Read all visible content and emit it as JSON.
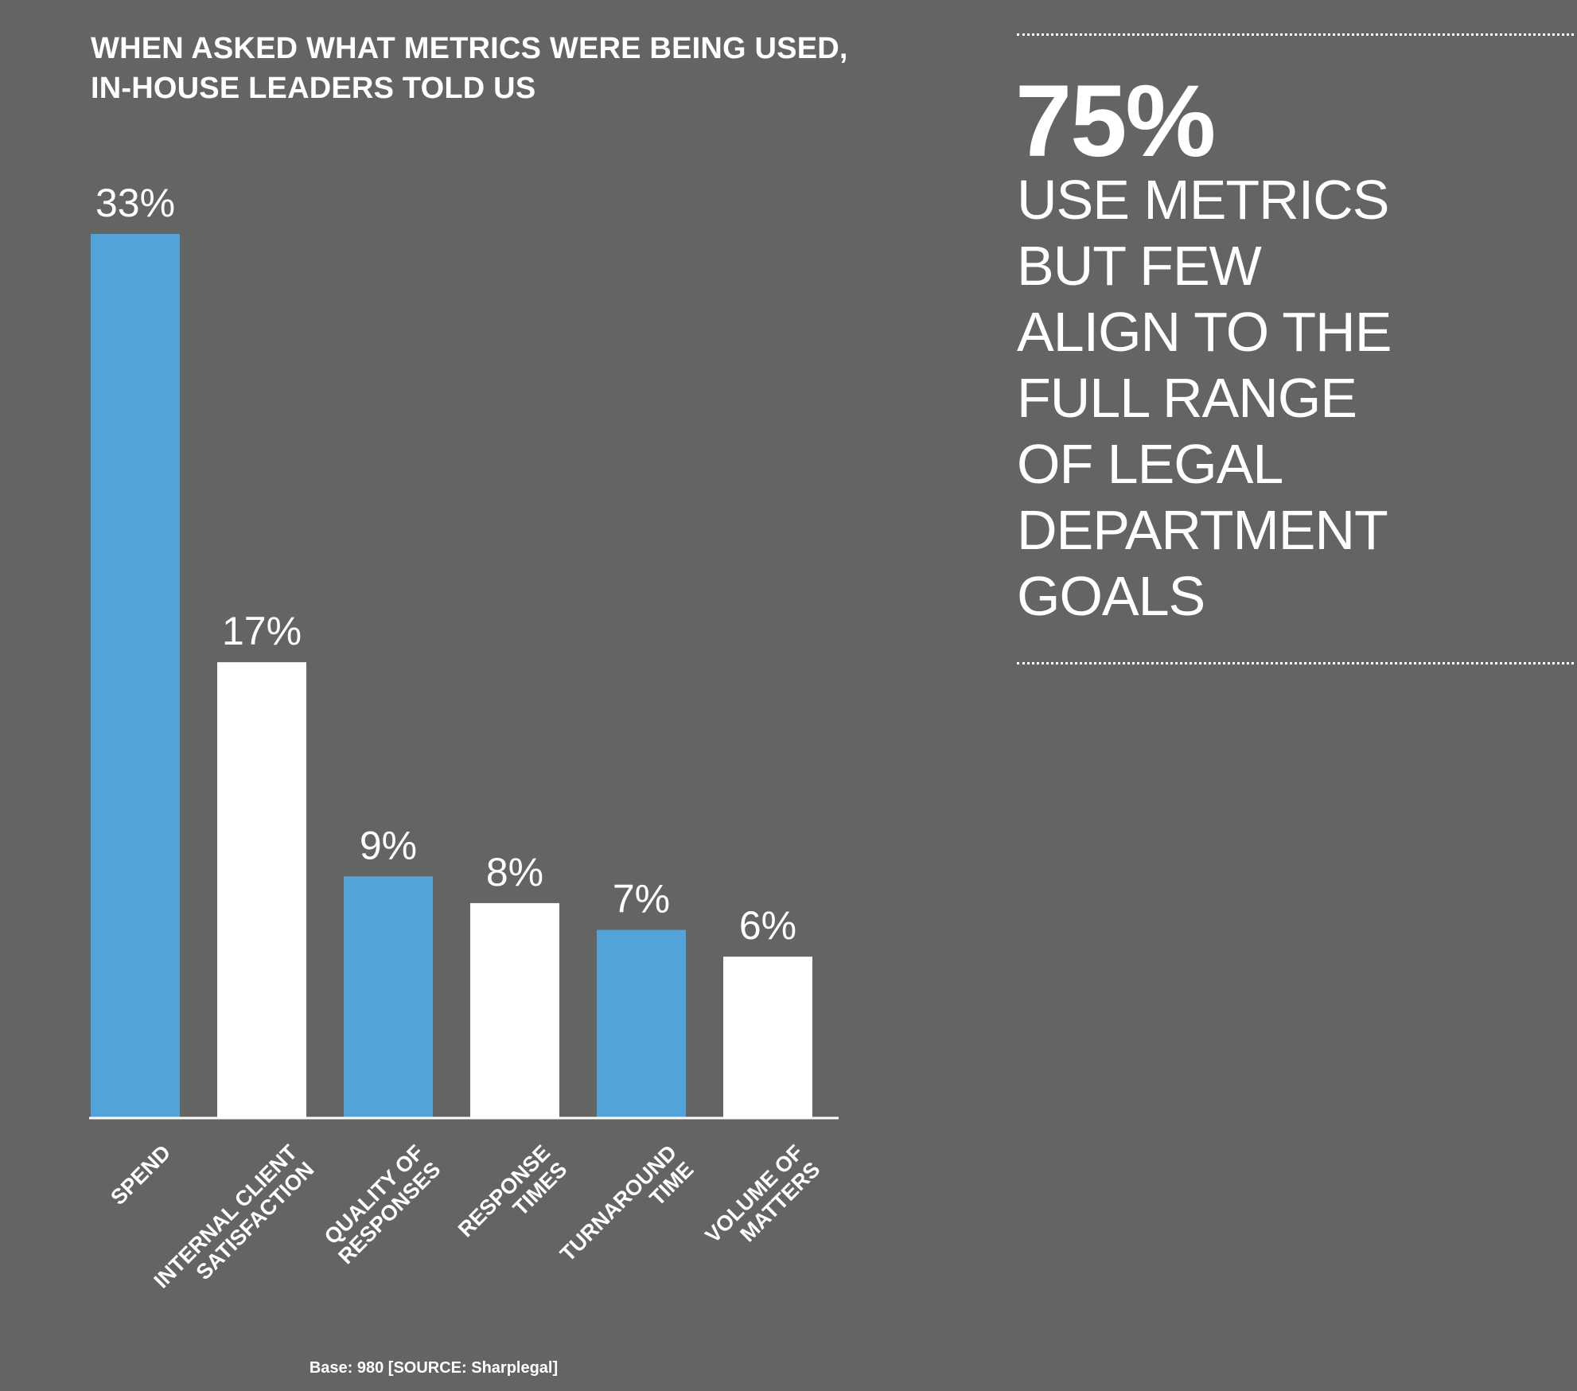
{
  "chart_data": {
    "type": "bar",
    "title": "WHEN ASKED WHAT METRICS WERE BEING USED, IN-HOUSE LEADERS TOLD US",
    "categories": [
      [
        "SPEND"
      ],
      [
        "INTERNAL CLIENT",
        "SATISFACTION"
      ],
      [
        "QUALITY OF",
        "RESPONSES"
      ],
      [
        "RESPONSE",
        "TIMES"
      ],
      [
        "TURNAROUND",
        "TIME"
      ],
      [
        "VOLUME OF",
        "MATTERS"
      ]
    ],
    "values": [
      33,
      17,
      9,
      8,
      7,
      6
    ],
    "value_labels": [
      "33%",
      "17%",
      "9%",
      "8%",
      "7%",
      "6%"
    ],
    "bar_colors": [
      "#52a3d9",
      "#ffffff",
      "#52a3d9",
      "#ffffff",
      "#52a3d9",
      "#ffffff"
    ],
    "ylim": [
      0,
      33
    ],
    "grid": false,
    "legend": "none"
  },
  "source": "Base: 980 [SOURCE: Sharplegal]",
  "callout": {
    "stat": "75%",
    "lines": [
      "USE METRICS",
      "BUT FEW",
      "ALIGN TO THE",
      "FULL RANGE",
      "OF LEGAL",
      "DEPARTMENT",
      "GOALS"
    ]
  },
  "colors": {
    "background": "#646463",
    "accent": "#52a3d9",
    "text": "#ffffff"
  }
}
